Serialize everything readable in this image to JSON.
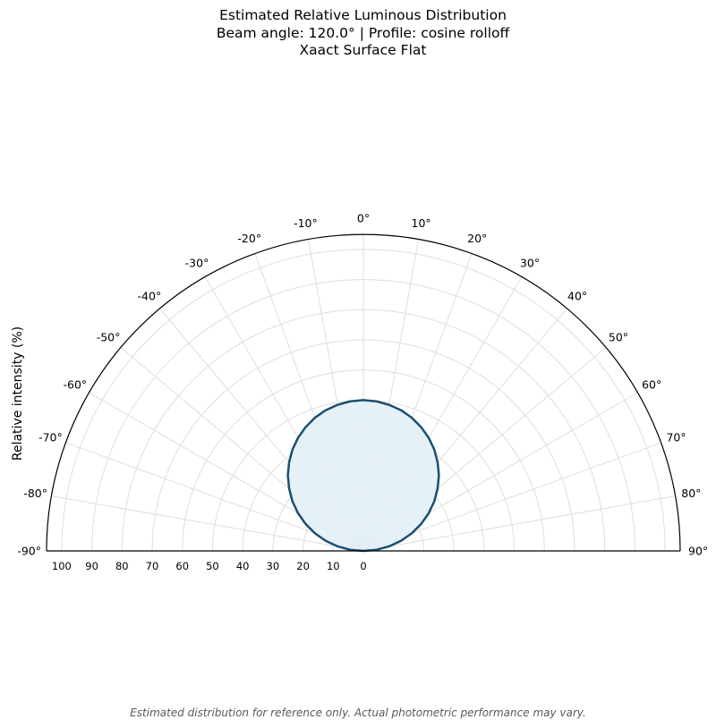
{
  "header": {
    "title_line1": "Estimated Relative Luminous Distribution",
    "title_line2": "Beam angle: 120.0° | Profile: cosine rolloff",
    "title_line3": "Xaact Surface Flat"
  },
  "footer": {
    "note": "Estimated distribution for reference only. Actual photometric performance may vary."
  },
  "chart_data": {
    "type": "polar-half",
    "ylabel": "Relative intensity (%)",
    "angle_range": [
      -90,
      90
    ],
    "angle_ticks": [
      -90,
      -80,
      -70,
      -60,
      -50,
      -40,
      -30,
      -20,
      -10,
      0,
      10,
      20,
      30,
      40,
      50,
      60,
      70,
      80,
      90
    ],
    "angle_tick_labels": [
      "-90°",
      "-80°",
      "-70°",
      "-60°",
      "-50°",
      "-40°",
      "-30°",
      "-20°",
      "-10°",
      "0°",
      "10°",
      "20°",
      "30°",
      "40°",
      "50°",
      "60°",
      "70°",
      "80°",
      "90°"
    ],
    "radial_range": [
      0,
      105
    ],
    "radial_ticks": [
      0,
      10,
      20,
      30,
      40,
      50,
      60,
      70,
      80,
      90,
      100
    ],
    "radial_tick_labels": [
      "0",
      "10",
      "20",
      "30",
      "40",
      "50",
      "60",
      "70",
      "80",
      "90",
      "100"
    ],
    "grid": true,
    "series": [
      {
        "beam_angle_deg": 120.0,
        "profile": "cosine rolloff",
        "angles": [
          -90,
          -85,
          -80,
          -75,
          -70,
          -65,
          -60,
          -55,
          -50,
          -45,
          -40,
          -35,
          -30,
          -25,
          -20,
          -15,
          -10,
          -5,
          0,
          5,
          10,
          15,
          20,
          25,
          30,
          35,
          40,
          45,
          50,
          55,
          60,
          65,
          70,
          75,
          80,
          85,
          90
        ],
        "values": [
          0,
          4.4,
          8.6,
          12.9,
          17.1,
          21.1,
          25.0,
          28.7,
          32.1,
          35.4,
          38.3,
          41.0,
          43.3,
          45.3,
          47.0,
          48.3,
          49.2,
          49.8,
          50.0,
          49.8,
          49.2,
          48.3,
          47.0,
          45.3,
          43.3,
          41.0,
          38.3,
          35.4,
          32.1,
          28.7,
          25.0,
          21.1,
          17.1,
          12.9,
          8.6,
          4.4,
          0
        ],
        "line_color": "#1a4f72",
        "fill_color": "#e3eef6"
      }
    ]
  }
}
